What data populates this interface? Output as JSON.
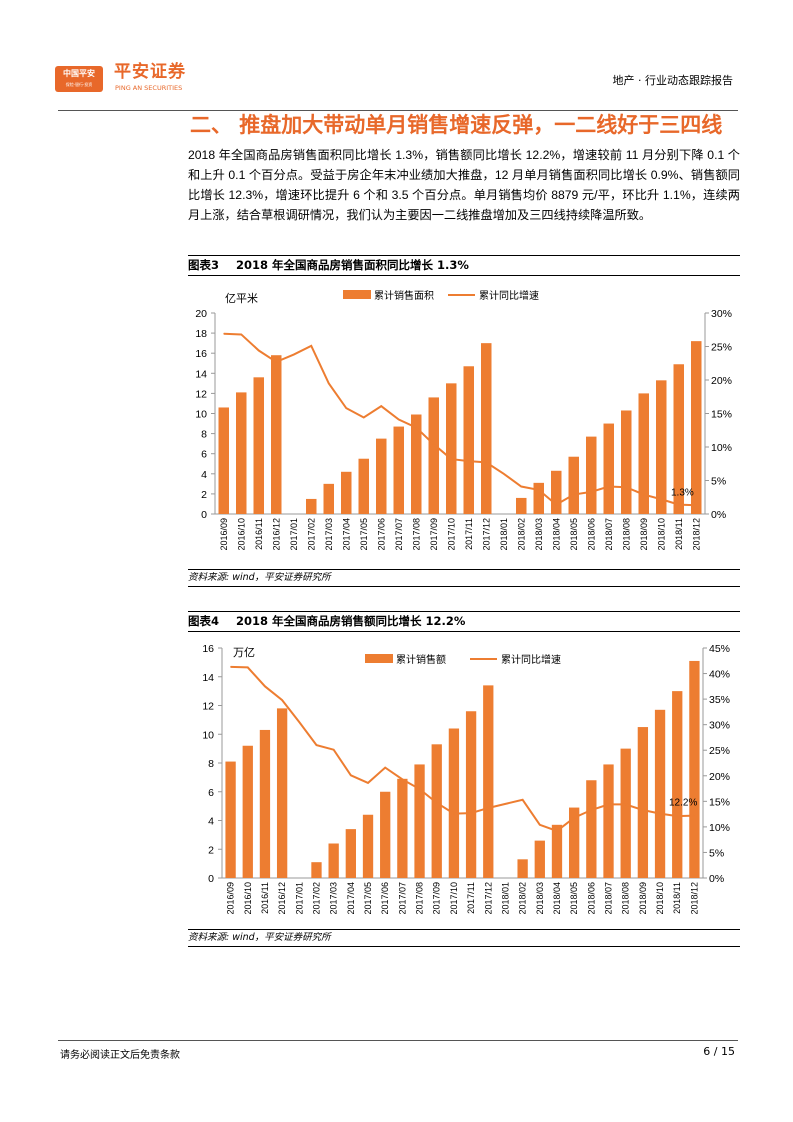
{
  "header": {
    "logo_box": "中国平安",
    "logo_box_sub": "保险·银行·投资",
    "logo_cn": "平安证券",
    "logo_en": "PING AN SECURITIES",
    "report_type": "地产 · 行业动态跟踪报告"
  },
  "section_title": "二、  推盘加大带动单月销售增速反弹，一二线好于三四线",
  "paragraph": "2018 年全国商品房销售面积同比增长 1.3%，销售额同比增长 12.2%，增速较前 11 月分别下降 0.1 个和上升 0.1 个百分点。受益于房企年末冲业绩加大推盘，12 月单月销售面积同比增长 0.9%、销售额同比增长 12.3%，增速环比提升 6 个和 3.5 个百分点。单月销售均价 8879 元/平，环比升 1.1%，连续两月上涨，结合草根调研情况，我们认为主要因一二线推盘增加及三四线持续降温所致。",
  "figures": [
    {
      "number": "图表3",
      "title": "2018 年全国商品房销售面积同比增长 1.3%",
      "source": "资料来源: wind，平安证券研究所"
    },
    {
      "number": "图表4",
      "title": "2018 年全国商品房销售额同比增长 12.2%",
      "source": "资料来源: wind，平安证券研究所"
    }
  ],
  "colors": {
    "accent": "#e8682a",
    "bar": "#ed7d31"
  },
  "chart_data": [
    {
      "type": "bar+line",
      "ylabel": "亿平米",
      "ylim": [
        0,
        20
      ],
      "yticks": [
        0,
        2,
        4,
        6,
        8,
        10,
        12,
        14,
        16,
        18,
        20
      ],
      "y2lim": [
        0,
        30
      ],
      "y2ticks": [
        "0%",
        "5%",
        "10%",
        "15%",
        "20%",
        "25%",
        "30%"
      ],
      "legend_position": "top",
      "annotation": "1.3%",
      "categories": [
        "2016/09",
        "2016/10",
        "2016/11",
        "2016/12",
        "2017/01",
        "2017/02",
        "2017/03",
        "2017/04",
        "2017/05",
        "2017/06",
        "2017/07",
        "2017/08",
        "2017/09",
        "2017/10",
        "2017/11",
        "2017/12",
        "2018/01",
        "2018/02",
        "2018/03",
        "2018/04",
        "2018/05",
        "2018/06",
        "2018/07",
        "2018/08",
        "2018/09",
        "2018/10",
        "2018/11",
        "2018/12"
      ],
      "series": [
        {
          "name": "累计销售面积",
          "type": "bar",
          "axis": "left",
          "values": [
            10.6,
            12.1,
            13.6,
            15.8,
            null,
            1.5,
            3.0,
            4.2,
            5.5,
            7.5,
            8.7,
            9.9,
            11.6,
            13.0,
            14.7,
            17.0,
            null,
            1.6,
            3.1,
            4.3,
            5.7,
            7.7,
            9.0,
            10.3,
            12.0,
            13.3,
            14.9,
            17.2
          ]
        },
        {
          "name": "累计同比增速",
          "type": "line",
          "axis": "right",
          "values": [
            26.9,
            26.8,
            24.4,
            22.7,
            23.8,
            25.1,
            19.5,
            15.8,
            14.4,
            16.1,
            14.1,
            12.9,
            10.4,
            8.2,
            7.9,
            7.7,
            6.0,
            4.1,
            3.6,
            1.4,
            2.9,
            3.3,
            4.1,
            4.0,
            2.9,
            2.2,
            1.4,
            1.3
          ]
        }
      ]
    },
    {
      "type": "bar+line",
      "ylabel": "万亿",
      "ylim": [
        0,
        16
      ],
      "yticks": [
        0,
        2,
        4,
        6,
        8,
        10,
        12,
        14,
        16
      ],
      "y2lim": [
        0,
        45
      ],
      "y2ticks": [
        "0%",
        "5%",
        "10%",
        "15%",
        "20%",
        "25%",
        "30%",
        "35%",
        "40%",
        "45%"
      ],
      "legend_position": "top",
      "annotation": "12.2%",
      "categories": [
        "2016/09",
        "2016/10",
        "2016/11",
        "2016/12",
        "2017/01",
        "2017/02",
        "2017/03",
        "2017/04",
        "2017/05",
        "2017/06",
        "2017/07",
        "2017/08",
        "2017/09",
        "2017/10",
        "2017/11",
        "2017/12",
        "2018/01",
        "2018/02",
        "2018/03",
        "2018/04",
        "2018/05",
        "2018/06",
        "2018/07",
        "2018/08",
        "2018/09",
        "2018/10",
        "2018/11",
        "2018/12"
      ],
      "series": [
        {
          "name": "累计销售额",
          "type": "bar",
          "axis": "left",
          "values": [
            8.1,
            9.2,
            10.3,
            11.8,
            null,
            1.1,
            2.4,
            3.4,
            4.4,
            6.0,
            6.9,
            7.9,
            9.3,
            10.4,
            11.6,
            13.4,
            null,
            1.3,
            2.6,
            3.7,
            4.9,
            6.8,
            7.9,
            9.0,
            10.5,
            11.7,
            13.0,
            15.1
          ]
        },
        {
          "name": "累计同比增速",
          "type": "line",
          "axis": "right",
          "values": [
            41.3,
            41.2,
            37.5,
            34.8,
            30.5,
            26.0,
            25.1,
            20.1,
            18.6,
            21.6,
            19.3,
            17.4,
            14.7,
            12.6,
            12.7,
            13.7,
            14.5,
            15.3,
            10.4,
            9.2,
            11.8,
            13.3,
            14.4,
            14.4,
            13.3,
            12.6,
            12.1,
            12.2
          ]
        }
      ]
    }
  ],
  "footer": {
    "disclaimer": "请务必阅读正文后免责条款",
    "page": "6 / 15"
  }
}
